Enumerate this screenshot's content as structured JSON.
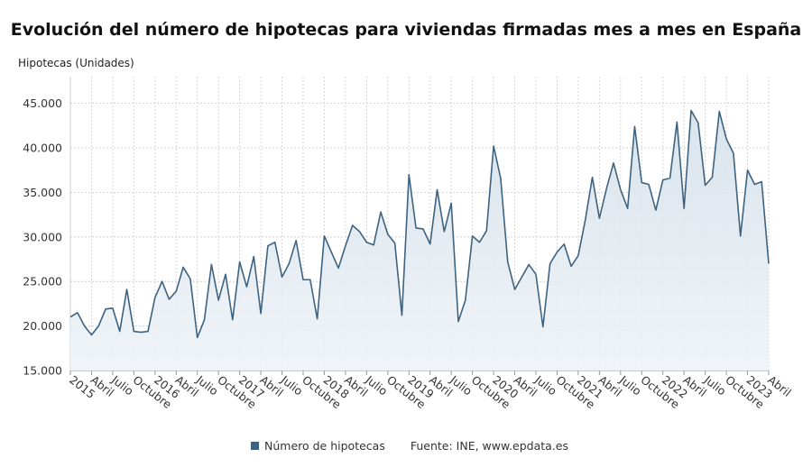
{
  "chart_data": {
    "type": "area",
    "title": "Evolución del número de hipotecas para viviendas firmadas mes a mes en España",
    "ylabel": "Hipotecas (Unidades)",
    "xlabel": "",
    "ylim": [
      15000,
      48000
    ],
    "yticks": [
      15000,
      20000,
      25000,
      30000,
      35000,
      40000,
      45000
    ],
    "ytick_labels": [
      "15.000",
      "20.000",
      "25.000",
      "30.000",
      "35.000",
      "40.000",
      "45.000"
    ],
    "x_start": "2015-01",
    "x_end": "2023-04",
    "x_tick_labels": [
      "2015",
      "Abril",
      "Julio",
      "Octubre",
      "2016",
      "Abril",
      "Julio",
      "Octubre",
      "2017",
      "Abril",
      "Julio",
      "Octubre",
      "2018",
      "Abril",
      "Julio",
      "Octubre",
      "2019",
      "Abril",
      "Julio",
      "Octubre",
      "2020",
      "Abril",
      "Julio",
      "Octubre",
      "2021",
      "Abril",
      "Julio",
      "Octubre",
      "2022",
      "Abril",
      "Julio",
      "Octubre",
      "2023",
      "Abril"
    ],
    "grid": true,
    "legend_position": "bottom",
    "series": [
      {
        "name": "Número de hipotecas",
        "color": "#3d6381",
        "values": [
          21000,
          21500,
          20000,
          19000,
          20000,
          21900,
          22000,
          19400,
          24100,
          19400,
          19300,
          19400,
          23200,
          25000,
          23000,
          23900,
          26600,
          25300,
          18700,
          20700,
          26900,
          22900,
          25800,
          20700,
          27200,
          24400,
          27800,
          21400,
          29000,
          29400,
          25500,
          27000,
          29600,
          25200,
          25200,
          20800,
          30100,
          28300,
          26500,
          29000,
          31300,
          30600,
          29400,
          29100,
          32800,
          30300,
          29300,
          21200,
          37000,
          31000,
          30900,
          29200,
          35300,
          30600,
          33800,
          20500,
          22900,
          30100,
          29400,
          30700,
          40200,
          36600,
          27200,
          24100,
          25500,
          26900,
          25800,
          19900,
          27000,
          28300,
          29200,
          26700,
          27900,
          31900,
          36700,
          32100,
          35400,
          38300,
          35300,
          33200,
          42400,
          36100,
          35900,
          33000,
          36400,
          36600,
          42900,
          33200,
          44200,
          42800,
          35800,
          36700,
          44100,
          41000,
          39400,
          30100,
          37500,
          35900,
          36200,
          27000
        ]
      }
    ],
    "legend_label": "Número de hipotecas",
    "source": "Fuente: INE, www.epdata.es"
  }
}
